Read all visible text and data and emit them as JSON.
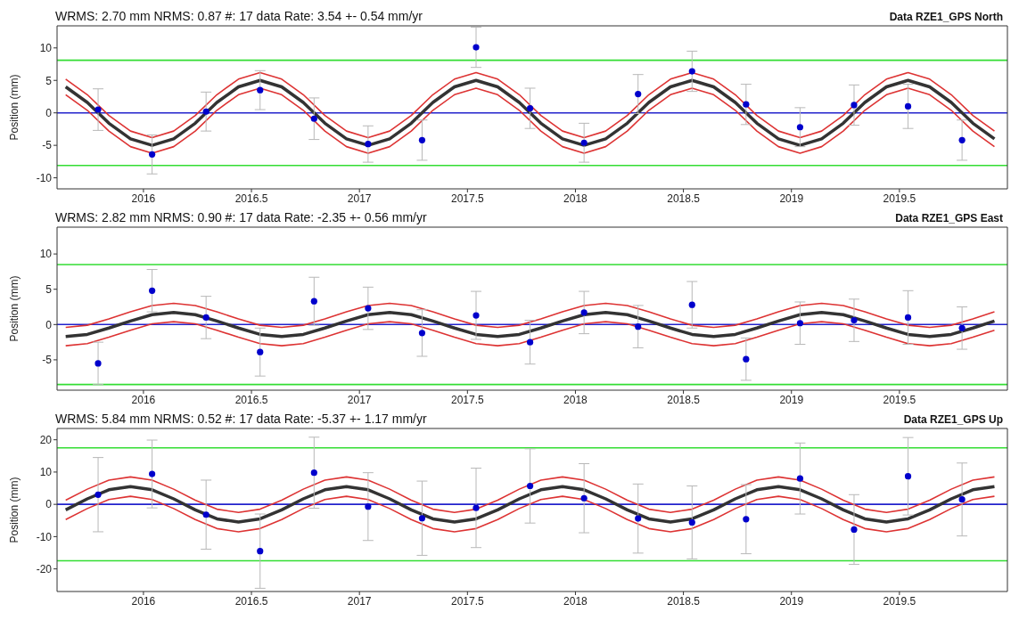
{
  "chart_data": [
    {
      "type": "scatter",
      "title": "WRMS: 2.70 mm NRMS: 0.87 #: 17 data Rate: 3.54 +- 0.54 mm/yr",
      "subtitle": "Data RZE1_GPS North",
      "ylabel": "Position (mm)",
      "xlim": [
        2015.6,
        2020.0
      ],
      "xticks": [
        2016,
        2016.5,
        2017,
        2017.5,
        2018,
        2018.5,
        2019,
        2019.5
      ],
      "ylim": [
        -11.7,
        13.4
      ],
      "yticks": [
        -10,
        -5,
        0,
        5,
        10
      ],
      "ref_lines": [
        {
          "axis": "y",
          "value": 0,
          "color": "#2222cc"
        },
        {
          "axis": "y",
          "value": 8.1,
          "color": "#33dd33"
        },
        {
          "axis": "y",
          "value": -8.1,
          "color": "#33dd33"
        }
      ],
      "series": [
        {
          "type": "line",
          "color": "#333333",
          "x": [
            2015.64,
            2015.74,
            2015.84,
            2015.94,
            2016.04,
            2016.14,
            2016.24,
            2016.34,
            2016.44,
            2016.54,
            2016.64,
            2016.74,
            2016.84,
            2016.94,
            2017.04,
            2017.14,
            2017.24,
            2017.34,
            2017.44,
            2017.54,
            2017.64,
            2017.74,
            2017.84,
            2017.94,
            2018.04,
            2018.14,
            2018.24,
            2018.34,
            2018.44,
            2018.54,
            2018.64,
            2018.74,
            2018.84,
            2018.94,
            2019.04,
            2019.14,
            2019.24,
            2019.34,
            2019.44,
            2019.54,
            2019.64,
            2019.74,
            2019.84,
            2019.94
          ],
          "values": [
            4.0,
            1.6,
            -1.6,
            -4.0,
            -5,
            -4.0,
            -1.6,
            1.6,
            4.0,
            5,
            4.0,
            1.6,
            -1.6,
            -4.0,
            -5,
            -4.0,
            -1.6,
            1.6,
            4.0,
            5,
            4.0,
            1.6,
            -1.6,
            -4.0,
            -5,
            -4.0,
            -1.6,
            1.6,
            4.0,
            5,
            4.0,
            1.6,
            -1.6,
            -4.0,
            -5,
            -4.0,
            -1.6,
            1.6,
            4.0,
            5,
            4.0,
            1.6,
            -1.6,
            -4.0
          ]
        },
        {
          "type": "line",
          "color": "#dd3333",
          "x": [
            2015.64,
            2015.74,
            2015.84,
            2015.94,
            2016.04,
            2016.14,
            2016.24,
            2016.34,
            2016.44,
            2016.54,
            2016.64,
            2016.74,
            2016.84,
            2016.94,
            2017.04,
            2017.14,
            2017.24,
            2017.34,
            2017.44,
            2017.54,
            2017.64,
            2017.74,
            2017.84,
            2017.94,
            2018.04,
            2018.14,
            2018.24,
            2018.34,
            2018.44,
            2018.54,
            2018.64,
            2018.74,
            2018.84,
            2018.94,
            2019.04,
            2019.14,
            2019.24,
            2019.34,
            2019.44,
            2019.54,
            2019.64,
            2019.74,
            2019.84,
            2019.94
          ],
          "values": [
            5.2,
            2.8,
            -0.4,
            -2.8,
            -3.8,
            -2.8,
            -0.4,
            2.8,
            5.2,
            6.2,
            5.2,
            2.8,
            -0.4,
            -2.8,
            -3.8,
            -2.8,
            -0.4,
            2.8,
            5.2,
            6.2,
            5.2,
            2.8,
            -0.4,
            -2.8,
            -3.8,
            -2.8,
            -0.4,
            2.8,
            5.2,
            6.2,
            5.2,
            2.8,
            -0.4,
            -2.8,
            -3.8,
            -2.8,
            -0.4,
            2.8,
            5.2,
            6.2,
            5.2,
            2.8,
            -0.4,
            -2.8
          ]
        },
        {
          "type": "line",
          "color": "#dd3333",
          "x": [
            2015.64,
            2015.74,
            2015.84,
            2015.94,
            2016.04,
            2016.14,
            2016.24,
            2016.34,
            2016.44,
            2016.54,
            2016.64,
            2016.74,
            2016.84,
            2016.94,
            2017.04,
            2017.14,
            2017.24,
            2017.34,
            2017.44,
            2017.54,
            2017.64,
            2017.74,
            2017.84,
            2017.94,
            2018.04,
            2018.14,
            2018.24,
            2018.34,
            2018.44,
            2018.54,
            2018.64,
            2018.74,
            2018.84,
            2018.94,
            2019.04,
            2019.14,
            2019.24,
            2019.34,
            2019.44,
            2019.54,
            2019.64,
            2019.74,
            2019.84,
            2019.94
          ],
          "values": [
            2.8,
            0.4,
            -2.8,
            -5.2,
            -6.2,
            -5.2,
            -2.8,
            0.4,
            2.8,
            3.8,
            2.8,
            0.4,
            -2.8,
            -5.2,
            -6.2,
            -5.2,
            -2.8,
            0.4,
            2.8,
            3.8,
            2.8,
            0.4,
            -2.8,
            -5.2,
            -6.2,
            -5.2,
            -2.8,
            0.4,
            2.8,
            3.8,
            2.8,
            0.4,
            -2.8,
            -5.2,
            -6.2,
            -5.2,
            -2.8,
            0.4,
            2.8,
            3.8,
            2.8,
            0.4,
            -2.8,
            -5.2
          ]
        },
        {
          "color": "#0000cc",
          "marker": "circle",
          "x": [
            2015.79,
            2016.04,
            2016.29,
            2016.54,
            2016.79,
            2017.04,
            2017.29,
            2017.54,
            2017.79,
            2018.04,
            2018.29,
            2018.54,
            2018.79,
            2019.04,
            2019.29,
            2019.54,
            2019.79
          ],
          "values": [
            0.5,
            -6.4,
            0.2,
            3.5,
            -0.9,
            -4.8,
            -4.2,
            10.1,
            0.7,
            -4.6,
            2.9,
            6.4,
            1.3,
            -2.2,
            1.2,
            1.0,
            -4.2
          ],
          "errors": [
            3.2,
            3,
            3,
            3,
            3.2,
            2.8,
            3.1,
            3.1,
            3.1,
            3,
            3,
            3.1,
            3.1,
            3,
            3.1,
            3.4,
            3.1
          ]
        }
      ]
    },
    {
      "type": "scatter",
      "title": "WRMS: 2.82 mm NRMS: 0.90 #: 17 data Rate: -2.35 +- 0.56 mm/yr",
      "subtitle": "Data RZE1_GPS East",
      "ylabel": "Position (mm)",
      "xlim": [
        2015.6,
        2020.0
      ],
      "xticks": [
        2016,
        2016.5,
        2017,
        2017.5,
        2018,
        2018.5,
        2019,
        2019.5
      ],
      "ylim": [
        -9.3,
        13.8
      ],
      "yticks": [
        -5,
        0,
        5,
        10
      ],
      "ref_lines": [
        {
          "axis": "y",
          "value": 0,
          "color": "#2222cc"
        },
        {
          "axis": "y",
          "value": 8.5,
          "color": "#33dd33"
        },
        {
          "axis": "y",
          "value": -8.5,
          "color": "#33dd33"
        }
      ],
      "series": [
        {
          "type": "line",
          "color": "#333333",
          "x": [
            2015.64,
            2015.74,
            2015.84,
            2015.94,
            2016.04,
            2016.14,
            2016.24,
            2016.34,
            2016.44,
            2016.54,
            2016.64,
            2016.74,
            2016.84,
            2016.94,
            2017.04,
            2017.14,
            2017.24,
            2017.34,
            2017.44,
            2017.54,
            2017.64,
            2017.74,
            2017.84,
            2017.94,
            2018.04,
            2018.14,
            2018.24,
            2018.34,
            2018.44,
            2018.54,
            2018.64,
            2018.74,
            2018.84,
            2018.94,
            2019.04,
            2019.14,
            2019.24,
            2019.34,
            2019.44,
            2019.54,
            2019.64,
            2019.74,
            2019.84,
            2019.94
          ],
          "values": [
            -1.7,
            -1.4,
            -0.5,
            0.5,
            1.4,
            1.7,
            1.4,
            0.5,
            -0.5,
            -1.4,
            -1.7,
            -1.4,
            -0.5,
            0.5,
            1.4,
            1.7,
            1.4,
            0.5,
            -0.5,
            -1.4,
            -1.7,
            -1.4,
            -0.5,
            0.5,
            1.4,
            1.7,
            1.4,
            0.5,
            -0.5,
            -1.4,
            -1.7,
            -1.4,
            -0.5,
            0.5,
            1.4,
            1.7,
            1.4,
            0.5,
            -0.5,
            -1.4,
            -1.7,
            -1.4,
            -0.5,
            0.5
          ]
        },
        {
          "type": "line",
          "color": "#dd3333",
          "x": [
            2015.64,
            2015.74,
            2015.84,
            2015.94,
            2016.04,
            2016.14,
            2016.24,
            2016.34,
            2016.44,
            2016.54,
            2016.64,
            2016.74,
            2016.84,
            2016.94,
            2017.04,
            2017.14,
            2017.24,
            2017.34,
            2017.44,
            2017.54,
            2017.64,
            2017.74,
            2017.84,
            2017.94,
            2018.04,
            2018.14,
            2018.24,
            2018.34,
            2018.44,
            2018.54,
            2018.64,
            2018.74,
            2018.84,
            2018.94,
            2019.04,
            2019.14,
            2019.24,
            2019.34,
            2019.44,
            2019.54,
            2019.64,
            2019.74,
            2019.84,
            2019.94
          ],
          "values": [
            -0.4,
            -0.1,
            0.8,
            1.8,
            2.7,
            3,
            2.7,
            1.8,
            0.8,
            -0.1,
            -0.4,
            -0.1,
            0.8,
            1.8,
            2.7,
            3,
            2.7,
            1.8,
            0.8,
            -0.1,
            -0.4,
            -0.1,
            0.8,
            1.8,
            2.7,
            3,
            2.7,
            1.8,
            0.8,
            -0.1,
            -0.4,
            -0.1,
            0.8,
            1.8,
            2.7,
            3,
            2.7,
            1.8,
            0.8,
            -0.1,
            -0.4,
            -0.1,
            0.8,
            1.8
          ]
        },
        {
          "type": "line",
          "color": "#dd3333",
          "x": [
            2015.64,
            2015.74,
            2015.84,
            2015.94,
            2016.04,
            2016.14,
            2016.24,
            2016.34,
            2016.44,
            2016.54,
            2016.64,
            2016.74,
            2016.84,
            2016.94,
            2017.04,
            2017.14,
            2017.24,
            2017.34,
            2017.44,
            2017.54,
            2017.64,
            2017.74,
            2017.84,
            2017.94,
            2018.04,
            2018.14,
            2018.24,
            2018.34,
            2018.44,
            2018.54,
            2018.64,
            2018.74,
            2018.84,
            2018.94,
            2019.04,
            2019.14,
            2019.24,
            2019.34,
            2019.44,
            2019.54,
            2019.64,
            2019.74,
            2019.84,
            2019.94
          ],
          "values": [
            -3,
            -2.7,
            -1.8,
            -0.8,
            0.1,
            0.4,
            0.1,
            -0.8,
            -1.8,
            -2.7,
            -3,
            -2.7,
            -1.8,
            -0.8,
            0.1,
            0.4,
            0.1,
            -0.8,
            -1.8,
            -2.7,
            -3,
            -2.7,
            -1.8,
            -0.8,
            0.1,
            0.4,
            0.1,
            -0.8,
            -1.8,
            -2.7,
            -3,
            -2.7,
            -1.8,
            -0.8,
            0.1,
            0.4,
            0.1,
            -0.8,
            -1.8,
            -2.7,
            -3,
            -2.7,
            -1.8,
            -0.8
          ]
        },
        {
          "color": "#0000cc",
          "marker": "circle",
          "x": [
            2015.79,
            2016.04,
            2016.29,
            2016.54,
            2016.79,
            2017.04,
            2017.29,
            2017.54,
            2017.79,
            2018.04,
            2018.29,
            2018.54,
            2018.79,
            2019.04,
            2019.29,
            2019.54,
            2019.79
          ],
          "values": [
            -5.5,
            4.8,
            1.0,
            -3.9,
            3.3,
            2.3,
            -1.2,
            1.3,
            -2.5,
            1.7,
            -0.3,
            2.8,
            -4.9,
            0.2,
            0.6,
            1.0,
            -0.5
          ],
          "errors": [
            3,
            3,
            3,
            3.4,
            3.4,
            3,
            3.3,
            3.4,
            3.1,
            3,
            3,
            3.3,
            3,
            3,
            3,
            3.8,
            3
          ]
        }
      ]
    },
    {
      "type": "scatter",
      "title": "WRMS: 5.84 mm NRMS: 0.52 #: 17 data Rate: -5.37 +- 1.17 mm/yr",
      "subtitle": "Data RZE1_GPS Up",
      "ylabel": "Position (mm)",
      "xlim": [
        2015.6,
        2020.0
      ],
      "xticks": [
        2016,
        2016.5,
        2017,
        2017.5,
        2018,
        2018.5,
        2019,
        2019.5
      ],
      "ylim": [
        -27,
        23.5
      ],
      "yticks": [
        -20,
        -10,
        0,
        10,
        20
      ],
      "ref_lines": [
        {
          "axis": "y",
          "value": 0,
          "color": "#2222cc"
        },
        {
          "axis": "y",
          "value": 17.5,
          "color": "#33dd33"
        },
        {
          "axis": "y",
          "value": -17.5,
          "color": "#33dd33"
        }
      ],
      "series": [
        {
          "type": "line",
          "color": "#333333",
          "x": [
            2015.64,
            2015.74,
            2015.84,
            2015.94,
            2016.04,
            2016.14,
            2016.24,
            2016.34,
            2016.44,
            2016.54,
            2016.64,
            2016.74,
            2016.84,
            2016.94,
            2017.04,
            2017.14,
            2017.24,
            2017.34,
            2017.44,
            2017.54,
            2017.64,
            2017.74,
            2017.84,
            2017.94,
            2018.04,
            2018.14,
            2018.24,
            2018.34,
            2018.44,
            2018.54,
            2018.64,
            2018.74,
            2018.84,
            2018.94,
            2019.04,
            2019.14,
            2019.24,
            2019.34,
            2019.44,
            2019.54,
            2019.64,
            2019.74,
            2019.84,
            2019.94
          ],
          "values": [
            -1.7,
            1.7,
            4.5,
            5.5,
            4.5,
            1.7,
            -1.7,
            -4.5,
            -5.5,
            -4.5,
            -1.7,
            1.7,
            4.5,
            5.5,
            4.5,
            1.7,
            -1.7,
            -4.5,
            -5.5,
            -4.5,
            -1.7,
            1.7,
            4.5,
            5.5,
            4.5,
            1.7,
            -1.7,
            -4.5,
            -5.5,
            -4.5,
            -1.7,
            1.7,
            4.5,
            5.5,
            4.5,
            1.7,
            -1.7,
            -4.5,
            -5.5,
            -4.5,
            -1.7,
            1.7,
            4.5,
            5.5
          ]
        },
        {
          "type": "line",
          "color": "#dd3333",
          "x": [
            2015.64,
            2015.74,
            2015.84,
            2015.94,
            2016.04,
            2016.14,
            2016.24,
            2016.34,
            2016.44,
            2016.54,
            2016.64,
            2016.74,
            2016.84,
            2016.94,
            2017.04,
            2017.14,
            2017.24,
            2017.34,
            2017.44,
            2017.54,
            2017.64,
            2017.74,
            2017.84,
            2017.94,
            2018.04,
            2018.14,
            2018.24,
            2018.34,
            2018.44,
            2018.54,
            2018.64,
            2018.74,
            2018.84,
            2018.94,
            2019.04,
            2019.14,
            2019.24,
            2019.34,
            2019.44,
            2019.54,
            2019.64,
            2019.74,
            2019.84,
            2019.94
          ],
          "values": [
            1.3,
            4.7,
            7.5,
            8.5,
            7.5,
            4.7,
            1.3,
            -1.5,
            -2.5,
            -1.5,
            1.3,
            4.7,
            7.5,
            8.5,
            7.5,
            4.7,
            1.3,
            -1.5,
            -2.5,
            -1.5,
            1.3,
            4.7,
            7.5,
            8.5,
            7.5,
            4.7,
            1.3,
            -1.5,
            -2.5,
            -1.5,
            1.3,
            4.7,
            7.5,
            8.5,
            7.5,
            4.7,
            1.3,
            -1.5,
            -2.5,
            -1.5,
            1.3,
            4.7,
            7.5,
            8.5
          ]
        },
        {
          "type": "line",
          "color": "#dd3333",
          "x": [
            2015.64,
            2015.74,
            2015.84,
            2015.94,
            2016.04,
            2016.14,
            2016.24,
            2016.34,
            2016.44,
            2016.54,
            2016.64,
            2016.74,
            2016.84,
            2016.94,
            2017.04,
            2017.14,
            2017.24,
            2017.34,
            2017.44,
            2017.54,
            2017.64,
            2017.74,
            2017.84,
            2017.94,
            2018.04,
            2018.14,
            2018.24,
            2018.34,
            2018.44,
            2018.54,
            2018.64,
            2018.74,
            2018.84,
            2018.94,
            2019.04,
            2019.14,
            2019.24,
            2019.34,
            2019.44,
            2019.54,
            2019.64,
            2019.74,
            2019.84,
            2019.94
          ],
          "values": [
            -4.7,
            -1.3,
            1.5,
            2.5,
            1.5,
            -1.3,
            -4.7,
            -7.5,
            -8.5,
            -7.5,
            -4.7,
            -1.3,
            1.5,
            2.5,
            1.5,
            -1.3,
            -4.7,
            -7.5,
            -8.5,
            -7.5,
            -4.7,
            -1.3,
            1.5,
            2.5,
            1.5,
            -1.3,
            -4.7,
            -7.5,
            -8.5,
            -7.5,
            -4.7,
            -1.3,
            1.5,
            2.5,
            1.5,
            -1.3,
            -4.7,
            -7.5,
            -8.5,
            -7.5,
            -4.7,
            -1.3,
            1.5,
            2.5
          ]
        },
        {
          "color": "#0000cc",
          "marker": "circle",
          "x": [
            2015.79,
            2016.04,
            2016.29,
            2016.54,
            2016.79,
            2017.04,
            2017.29,
            2017.54,
            2017.79,
            2018.04,
            2018.29,
            2018.54,
            2018.79,
            2019.04,
            2019.29,
            2019.54,
            2019.79
          ],
          "values": [
            3.0,
            9.4,
            -3.2,
            -14.5,
            9.8,
            -0.7,
            -4.3,
            -1.1,
            5.7,
            1.9,
            -4.4,
            -5.6,
            -4.6,
            8.0,
            -7.8,
            8.7,
            1.5
          ],
          "errors": [
            11.5,
            10.5,
            10.7,
            11.5,
            11,
            10.5,
            11.5,
            12.3,
            11.5,
            10.7,
            10.7,
            11.3,
            10.7,
            11,
            10.8,
            12,
            11.3
          ]
        }
      ]
    }
  ]
}
